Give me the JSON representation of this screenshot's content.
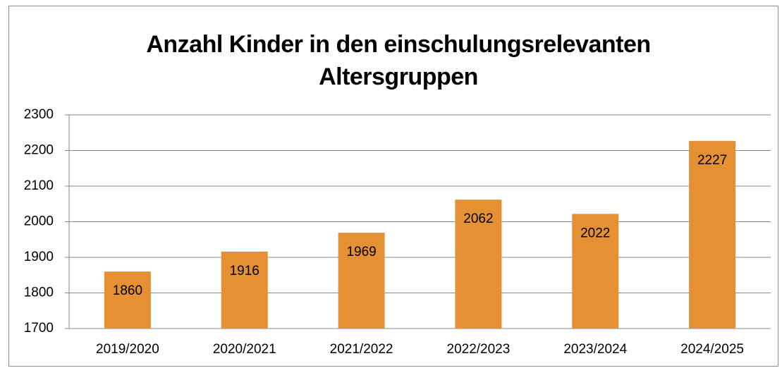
{
  "chart_data": {
    "type": "bar",
    "title": "Anzahl Kinder in den einschulungsrelevanten Altersgruppen",
    "categories": [
      "2019/2020",
      "2020/2021",
      "2021/2022",
      "2022/2023",
      "2023/2024",
      "2024/2025"
    ],
    "values": [
      1860,
      1916,
      1969,
      2062,
      2022,
      2227
    ],
    "color": "#e59133",
    "ylim": [
      1700,
      2300
    ],
    "yticks": [
      1700,
      1800,
      1900,
      2000,
      2100,
      2200,
      2300
    ],
    "grid": true
  }
}
